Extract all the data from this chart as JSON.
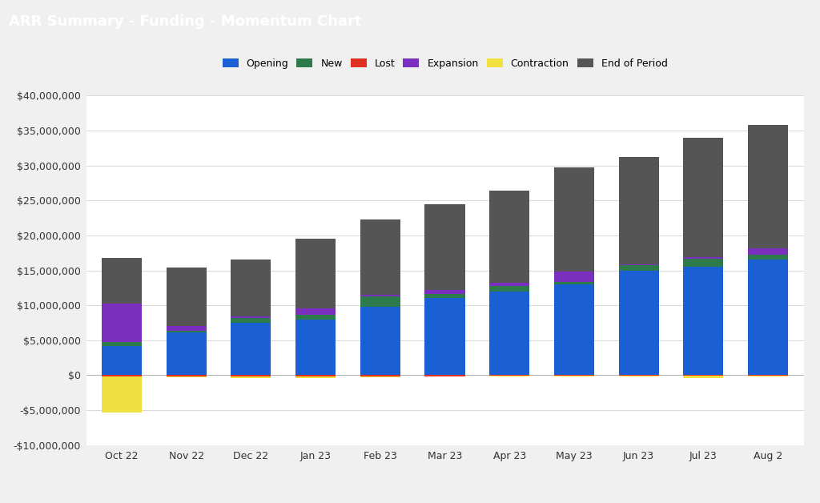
{
  "title": "ARR Summary - Funding - Momentum Chart",
  "title_bg": "#0d0d3b",
  "title_fg": "#ffffff",
  "categories": [
    "Oct 22",
    "Nov 22",
    "Dec 22",
    "Jan 23",
    "Feb 23",
    "Mar 23",
    "Apr 23",
    "May 23",
    "Jun 23",
    "Jul 23",
    "Aug 2"
  ],
  "segments": {
    "Opening": [
      4200000,
      6100000,
      7500000,
      8000000,
      9800000,
      11000000,
      12000000,
      13000000,
      15000000,
      15500000,
      16500000
    ],
    "New": [
      500000,
      300000,
      700000,
      700000,
      1500000,
      600000,
      800000,
      400000,
      700000,
      1200000,
      700000
    ],
    "Lost": [
      -150000,
      -150000,
      -150000,
      -150000,
      -150000,
      -150000,
      -100000,
      -100000,
      -100000,
      -100000,
      -100000
    ],
    "Expansion": [
      5500000,
      600000,
      200000,
      900000,
      200000,
      600000,
      400000,
      1400000,
      200000,
      200000,
      900000
    ],
    "Contraction": [
      -5200000,
      -100000,
      -200000,
      -250000,
      -150000,
      -50000,
      -50000,
      -50000,
      -50000,
      -250000,
      -50000
    ],
    "EndOfPeriod": [
      6600000,
      8400000,
      8100000,
      9900000,
      10800000,
      12200000,
      13200000,
      14900000,
      15300000,
      17100000,
      17700000
    ]
  },
  "colors": {
    "Opening": "#1a5fd4",
    "New": "#2d7a4a",
    "Lost": "#e03020",
    "Expansion": "#7b2fbe",
    "Contraction": "#f0e040",
    "EndOfPeriod": "#555555"
  },
  "legend_labels": [
    "Opening",
    "New",
    "Lost",
    "Expansion",
    "Contraction",
    "End of Period"
  ],
  "legend_keys": [
    "Opening",
    "New",
    "Lost",
    "Expansion",
    "Contraction",
    "EndOfPeriod"
  ],
  "ylim": [
    -10000000,
    40000000
  ],
  "yticks": [
    -10000000,
    -5000000,
    0,
    5000000,
    10000000,
    15000000,
    20000000,
    25000000,
    30000000,
    35000000,
    40000000
  ],
  "plot_bg": "#ffffff",
  "outer_bg": "#f0f0f0",
  "grid_color": "#d8d8d8",
  "bar_width": 0.62,
  "title_fontsize": 13,
  "legend_fontsize": 9,
  "tick_fontsize": 9
}
